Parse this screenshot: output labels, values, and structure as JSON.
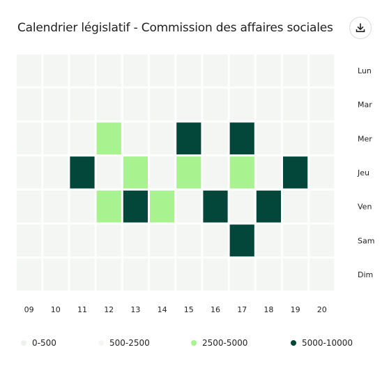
{
  "title": "Calendrier législatif - Commission des affaires sociales",
  "download_icon": "download-icon",
  "colors": {
    "empty": "#f3f6f2",
    "light": "#a8f28f",
    "dark": "#02473a",
    "legend_0": "#eef1ee",
    "legend_1": "#f5f7f5",
    "legend_2": "#a8f28f",
    "legend_3": "#02473a"
  },
  "chart_data": {
    "type": "heatmap",
    "x": [
      "09",
      "10",
      "11",
      "12",
      "13",
      "14",
      "15",
      "16",
      "17",
      "18",
      "19",
      "20"
    ],
    "y": [
      "Lun",
      "Mar",
      "Mer",
      "Jeu",
      "Ven",
      "Sam",
      "Dim"
    ],
    "bins": [
      "0-500",
      "500-2500",
      "2500-5000",
      "5000-10000"
    ],
    "legend_position": "bottom",
    "values": [
      [
        0,
        0,
        0,
        0,
        0,
        0,
        0,
        0,
        0,
        0,
        0,
        0
      ],
      [
        0,
        0,
        0,
        0,
        0,
        0,
        0,
        0,
        0,
        0,
        0,
        0
      ],
      [
        0,
        0,
        0,
        2,
        0,
        0,
        3,
        0,
        3,
        0,
        0,
        0
      ],
      [
        0,
        0,
        3,
        0,
        2,
        0,
        2,
        0,
        2,
        0,
        3,
        0
      ],
      [
        0,
        0,
        0,
        2,
        3,
        2,
        0,
        3,
        0,
        3,
        0,
        0
      ],
      [
        0,
        0,
        0,
        0,
        0,
        0,
        0,
        0,
        3,
        0,
        0,
        0
      ],
      [
        0,
        0,
        0,
        0,
        0,
        0,
        0,
        0,
        0,
        0,
        0,
        0
      ]
    ]
  }
}
